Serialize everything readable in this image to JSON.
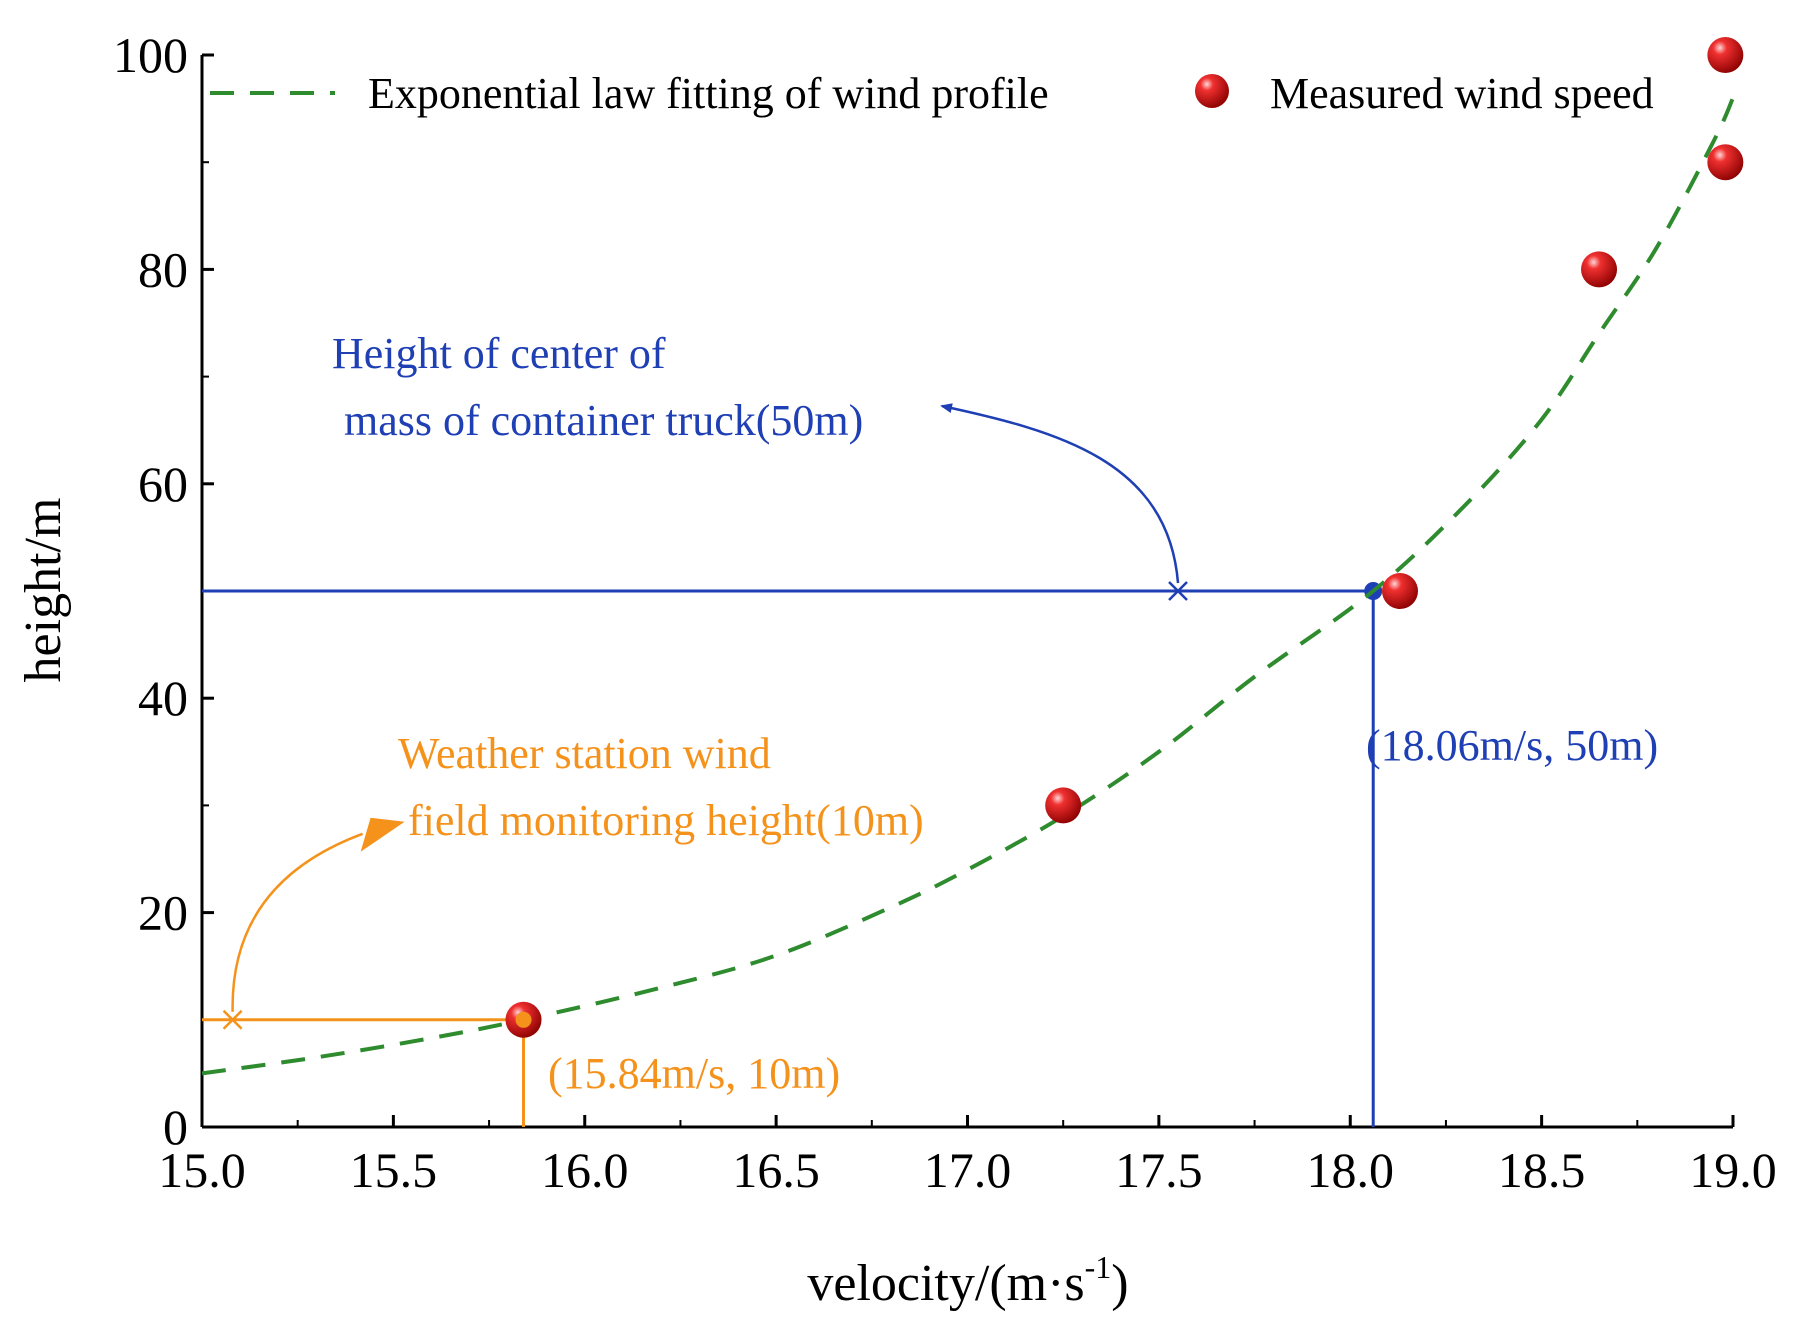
{
  "chart_data": {
    "type": "scatter",
    "title": "",
    "xlabel": "velocity/(m·s",
    "xlabel_superscript": "-1",
    "xlabel_suffix": ")",
    "ylabel": "height/m",
    "xlim": [
      15.0,
      19.0
    ],
    "ylim": [
      0,
      100
    ],
    "x_ticks": [
      "15.0",
      "15.5",
      "16.0",
      "16.5",
      "17.0",
      "17.5",
      "18.0",
      "18.5",
      "19.0"
    ],
    "y_ticks": [
      "0",
      "20",
      "40",
      "60",
      "80",
      "100"
    ],
    "legend_position": "top",
    "series": [
      {
        "name": "Exponential law fitting of wind profile",
        "style": "dashed-line",
        "color": "#2e8b2e",
        "points": [
          [
            15.0,
            5
          ],
          [
            15.3,
            6.5
          ],
          [
            15.6,
            8.3
          ],
          [
            15.84,
            10
          ],
          [
            16.2,
            13
          ],
          [
            16.5,
            16
          ],
          [
            16.8,
            20.5
          ],
          [
            17.0,
            24
          ],
          [
            17.25,
            29
          ],
          [
            17.5,
            35
          ],
          [
            17.75,
            42
          ],
          [
            18.06,
            50
          ],
          [
            18.3,
            58
          ],
          [
            18.5,
            66
          ],
          [
            18.65,
            74
          ],
          [
            18.8,
            82
          ],
          [
            18.95,
            92
          ],
          [
            19.0,
            96
          ]
        ]
      },
      {
        "name": "Measured wind speed",
        "style": "markers",
        "color": "#e01b1b",
        "points": [
          [
            15.84,
            10
          ],
          [
            17.25,
            30
          ],
          [
            18.13,
            50
          ],
          [
            18.65,
            80
          ],
          [
            18.98,
            90
          ],
          [
            18.98,
            100
          ]
        ]
      }
    ],
    "annotations": [
      {
        "id": "truck",
        "color": "#1f3fb4",
        "point": [
          18.06,
          50
        ],
        "cross_x": 17.55,
        "lines": [
          "Height of center of",
          "mass of container truck(50m)"
        ],
        "point_label": "(18.06m/s, 50m)"
      },
      {
        "id": "station",
        "color": "#f5921b",
        "point": [
          15.84,
          10
        ],
        "cross_x": 15.08,
        "lines": [
          "Weather station wind",
          "field monitoring height(10m)"
        ],
        "point_label": "(15.84m/s, 10m)"
      }
    ]
  }
}
